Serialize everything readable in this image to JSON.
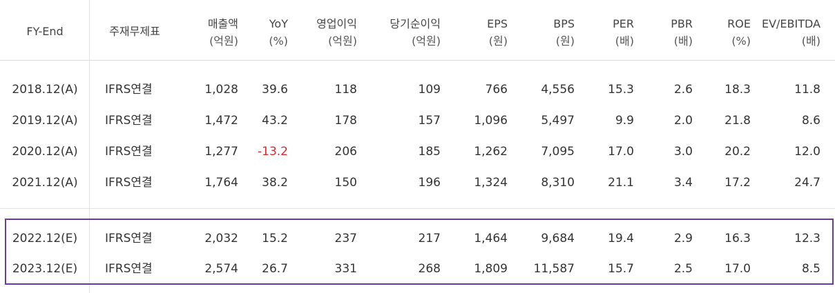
{
  "headers": [
    {
      "line1": "FY-End",
      "line2": ""
    },
    {
      "line1": "주재무제표",
      "line2": ""
    },
    {
      "line1": "매출액",
      "line2": "(억원)"
    },
    {
      "line1": "YoY",
      "line2": "(%)"
    },
    {
      "line1": "영업이익",
      "line2": "(억원)"
    },
    {
      "line1": "당기순이익",
      "line2": "(억원)"
    },
    {
      "line1": "EPS",
      "line2": "(원)"
    },
    {
      "line1": "BPS",
      "line2": "(원)"
    },
    {
      "line1": "PER",
      "line2": "(배)"
    },
    {
      "line1": "PBR",
      "line2": "(배)"
    },
    {
      "line1": "ROE",
      "line2": "(%)"
    },
    {
      "line1": "EV/EBITDA",
      "line2": "(배)"
    }
  ],
  "rows": [
    {
      "fy": "2018.12(A)",
      "basis": "IFRS연결",
      "sales": "1,028",
      "yoy": "39.6",
      "op": "118",
      "net": "109",
      "eps": "766",
      "bps": "4,556",
      "per": "15.3",
      "pbr": "2.6",
      "roe": "18.3",
      "ev": "11.8"
    },
    {
      "fy": "2019.12(A)",
      "basis": "IFRS연결",
      "sales": "1,472",
      "yoy": "43.2",
      "op": "178",
      "net": "157",
      "eps": "1,096",
      "bps": "5,497",
      "per": "9.9",
      "pbr": "2.0",
      "roe": "21.8",
      "ev": "8.6"
    },
    {
      "fy": "2020.12(A)",
      "basis": "IFRS연결",
      "sales": "1,277",
      "yoy": "-13.2",
      "op": "206",
      "net": "185",
      "eps": "1,262",
      "bps": "7,095",
      "per": "17.0",
      "pbr": "3.0",
      "roe": "20.2",
      "ev": "12.0"
    },
    {
      "fy": "2021.12(A)",
      "basis": "IFRS연결",
      "sales": "1,764",
      "yoy": "38.2",
      "op": "150",
      "net": "196",
      "eps": "1,324",
      "bps": "8,310",
      "per": "21.1",
      "pbr": "3.4",
      "roe": "17.2",
      "ev": "24.7"
    },
    {
      "fy": "2022.12(E)",
      "basis": "IFRS연결",
      "sales": "2,032",
      "yoy": "15.2",
      "op": "237",
      "net": "217",
      "eps": "1,464",
      "bps": "9,684",
      "per": "19.4",
      "pbr": "2.9",
      "roe": "16.3",
      "ev": "12.3"
    },
    {
      "fy": "2023.12(E)",
      "basis": "IFRS연결",
      "sales": "2,574",
      "yoy": "26.7",
      "op": "331",
      "net": "268",
      "eps": "1,809",
      "bps": "11,587",
      "per": "15.7",
      "pbr": "2.5",
      "roe": "17.0",
      "ev": "8.5"
    }
  ],
  "colors": {
    "negative": "#e0262b",
    "estimate_border": "#6a3aa0",
    "grid": "#e3e3e3"
  }
}
